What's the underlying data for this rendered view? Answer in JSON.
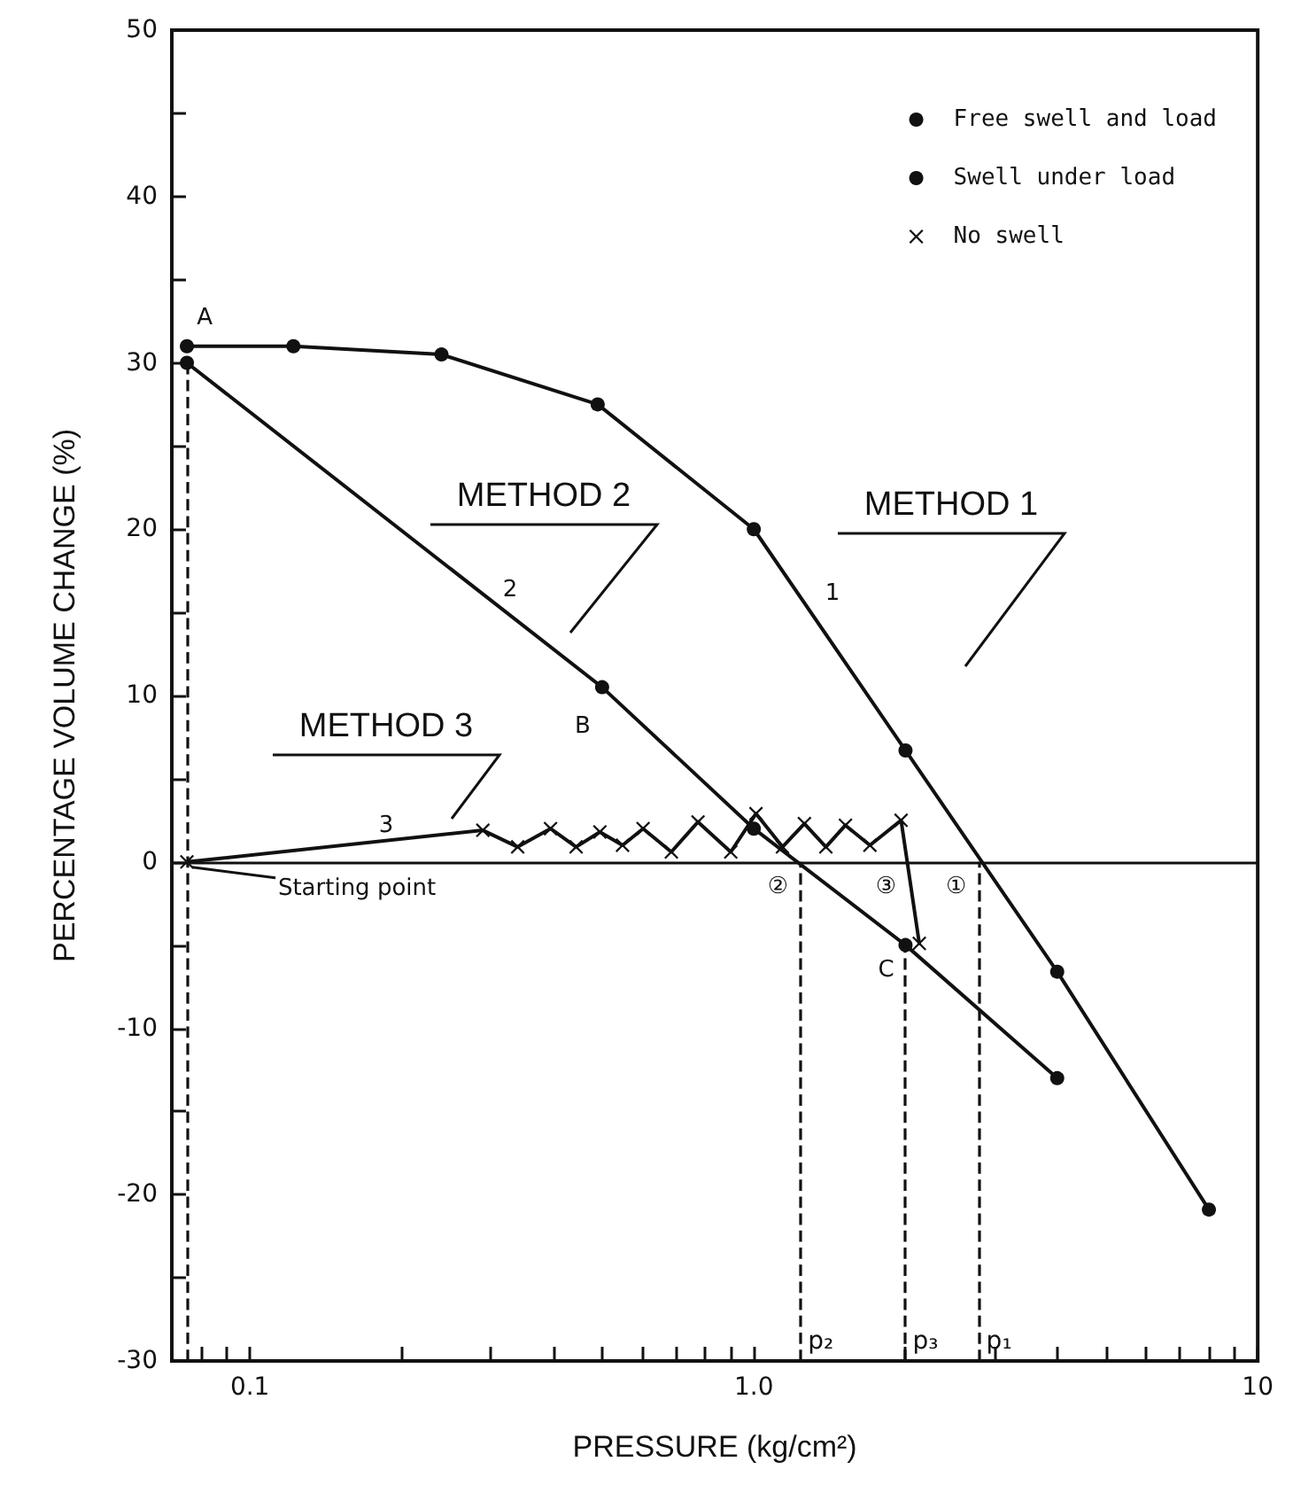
{
  "chart_data": {
    "type": "line",
    "xlabel": "PRESSURE (kg/cm²)",
    "ylabel": "PERCENTAGE VOLUME CHANGE (%)",
    "log": "x",
    "xlim": [
      0.07,
      10
    ],
    "ylim": [
      -30,
      50
    ],
    "xticks": [
      {
        "value": 0.08,
        "label": null
      },
      {
        "value": 0.09,
        "label": null
      },
      {
        "value": 0.1,
        "label": "0.1"
      },
      {
        "value": 0.2,
        "label": null
      },
      {
        "value": 0.3,
        "label": null
      },
      {
        "value": 0.4,
        "label": null
      },
      {
        "value": 0.5,
        "label": null
      },
      {
        "value": 0.6,
        "label": null
      },
      {
        "value": 0.7,
        "label": null
      },
      {
        "value": 0.8,
        "label": null
      },
      {
        "value": 0.9,
        "label": null
      },
      {
        "value": 1,
        "label": "1.0"
      },
      {
        "value": 2,
        "label": null
      },
      {
        "value": 3,
        "label": null
      },
      {
        "value": 4,
        "label": null
      },
      {
        "value": 5,
        "label": null
      },
      {
        "value": 6,
        "label": null
      },
      {
        "value": 7,
        "label": null
      },
      {
        "value": 8,
        "label": null
      },
      {
        "value": 9,
        "label": null
      },
      10
    ],
    "yticks": [
      -30,
      {
        "value": -25,
        "label": null
      },
      -20,
      {
        "value": -15,
        "label": null
      },
      -10,
      {
        "value": -5,
        "label": null
      },
      0,
      {
        "value": 5,
        "label": null
      },
      10,
      {
        "value": 15,
        "label": null
      },
      20,
      {
        "value": 25,
        "label": null
      },
      30,
      {
        "value": 35,
        "label": null
      },
      40,
      {
        "value": 45,
        "label": null
      },
      50
    ],
    "grid": false,
    "legend": "top right",
    "line_style": "solid",
    "series": [
      {
        "name": "Free swell and load",
        "color": "#111111",
        "marker": "circle",
        "x": [
          0.075,
          0.122,
          0.24,
          0.49,
          1.0,
          2.0,
          4.0,
          8.0
        ],
        "values": [
          31,
          31,
          30.5,
          27.5,
          20,
          6.7,
          -6.6,
          -20.9
        ]
      },
      {
        "name": "Swell under load",
        "color": "#111111",
        "marker": "circle",
        "x": [
          0.075,
          0.5,
          1.0,
          2.0,
          4.0
        ],
        "values": [
          30,
          10.5,
          2,
          -5,
          -13
        ]
      },
      {
        "name": "No swell",
        "color": "#111111",
        "marker": "cross",
        "x": [
          0.075,
          0.29,
          0.34,
          0.395,
          0.444,
          0.495,
          0.549,
          0.603,
          0.686,
          0.775,
          0.9,
          1.01,
          1.14,
          1.26,
          1.39,
          1.52,
          1.7,
          1.96,
          2.13
        ],
        "values": [
          0,
          1.9,
          0.9,
          2,
          0.9,
          1.8,
          1,
          2,
          0.6,
          2.4,
          0.6,
          2.9,
          0.9,
          2.3,
          0.9,
          2.2,
          1,
          2.5,
          -4.9
        ]
      }
    ],
    "ref_lines": [
      {
        "axis": "y",
        "value": 0,
        "label": null,
        "line_style": "solid"
      },
      {
        "axis": "x",
        "value": 0.075,
        "label": null,
        "line_style": "dashed"
      },
      {
        "axis": "x",
        "value": 1.24,
        "label": "p₂",
        "line_style": "dashed"
      },
      {
        "axis": "x",
        "value": 2.0,
        "label": "p₃",
        "line_style": "dashed"
      },
      {
        "axis": "x",
        "value": 2.8,
        "label": "p₁",
        "line_style": "dashed"
      }
    ],
    "annotations": [
      {
        "text": "A",
        "x": 0.075,
        "y": 31
      },
      {
        "text": "B",
        "x": 0.5,
        "y": 10.5
      },
      {
        "text": "C",
        "x": 2.0,
        "y": -5
      },
      "1",
      "2",
      "3",
      "METHOD 1",
      "METHOD 2",
      "METHOD 3",
      {
        "text": "Starting point",
        "x": 0.075,
        "y": 0
      },
      {
        "text": "②",
        "x": 1.24,
        "y": 0
      },
      {
        "text": "③",
        "x": 2.0,
        "y": 0
      },
      {
        "text": "①",
        "x": 2.8,
        "y": 0
      }
    ]
  }
}
